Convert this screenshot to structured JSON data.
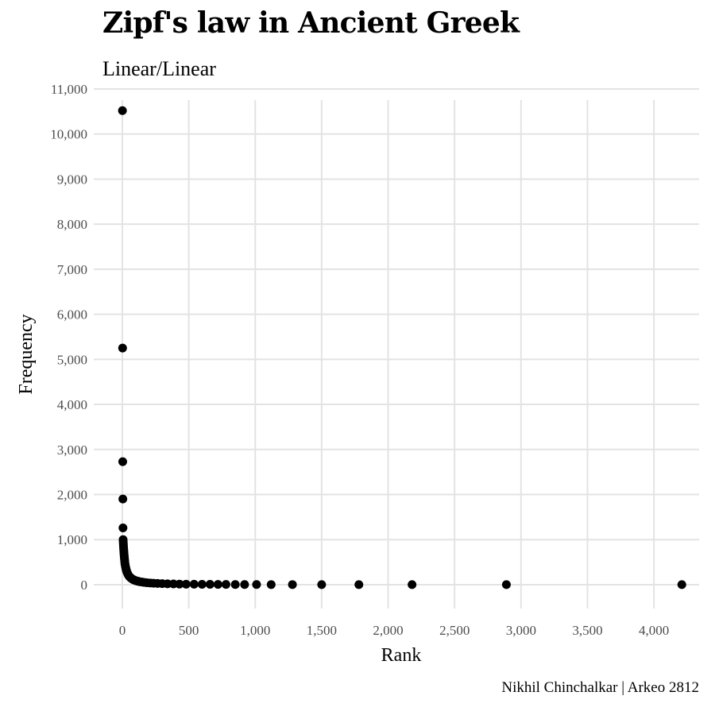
{
  "chart_data": {
    "type": "scatter",
    "title": "Zipf's law in Ancient Greek",
    "subtitle": "Linear/Linear",
    "xlabel": "Rank",
    "ylabel": "Frequency",
    "caption": "Nikhil Chinchalkar | Arkeo 2812",
    "xlim": [
      -215,
      4340
    ],
    "ylim": [
      -530,
      11000
    ],
    "x_ticks": [
      0,
      500,
      1000,
      1500,
      2000,
      2500,
      3000,
      3500,
      4000
    ],
    "x_tick_labels": [
      "0",
      "500",
      "1,000",
      "1,500",
      "2,000",
      "2,500",
      "3,000",
      "3,500",
      "4,000"
    ],
    "y_ticks": [
      0,
      1000,
      2000,
      3000,
      4000,
      5000,
      6000,
      7000,
      8000,
      9000,
      10000,
      11000
    ],
    "y_tick_labels": [
      "0",
      "1,000",
      "2,000",
      "3,000",
      "4,000",
      "5,000",
      "6,000",
      "7,000",
      "8,000",
      "9,000",
      "10,000",
      "11,000"
    ],
    "grid": true,
    "point_color": "#000000",
    "series": [
      {
        "points": [
          [
            1,
            10520
          ],
          [
            2,
            5250
          ],
          [
            3,
            2730
          ],
          [
            4,
            1900
          ],
          [
            5,
            1260
          ],
          [
            6,
            1000
          ],
          [
            7,
            950
          ],
          [
            8,
            900
          ],
          [
            9,
            850
          ],
          [
            10,
            800
          ],
          [
            11,
            760
          ],
          [
            12,
            720
          ],
          [
            13,
            680
          ],
          [
            14,
            640
          ],
          [
            15,
            610
          ],
          [
            16,
            580
          ],
          [
            17,
            550
          ],
          [
            18,
            520
          ],
          [
            19,
            490
          ],
          [
            20,
            460
          ],
          [
            22,
            430
          ],
          [
            24,
            400
          ],
          [
            26,
            370
          ],
          [
            28,
            345
          ],
          [
            30,
            320
          ],
          [
            33,
            295
          ],
          [
            36,
            270
          ],
          [
            40,
            245
          ],
          [
            44,
            220
          ],
          [
            48,
            200
          ],
          [
            53,
            180
          ],
          [
            58,
            165
          ],
          [
            64,
            150
          ],
          [
            70,
            135
          ],
          [
            77,
            120
          ],
          [
            85,
            108
          ],
          [
            95,
            96
          ],
          [
            105,
            85
          ],
          [
            118,
            75
          ],
          [
            132,
            66
          ],
          [
            148,
            58
          ],
          [
            165,
            50
          ],
          [
            185,
            43
          ],
          [
            210,
            37
          ],
          [
            235,
            32
          ],
          [
            265,
            27
          ],
          [
            300,
            23
          ],
          [
            340,
            19
          ],
          [
            385,
            16
          ],
          [
            430,
            13
          ],
          [
            480,
            11
          ],
          [
            540,
            10
          ],
          [
            600,
            8
          ],
          [
            660,
            7
          ],
          [
            720,
            6
          ],
          [
            780,
            5
          ],
          [
            850,
            4
          ],
          [
            920,
            3
          ],
          [
            1010,
            3
          ],
          [
            1120,
            2
          ],
          [
            1280,
            2
          ],
          [
            1500,
            1
          ],
          [
            1780,
            1
          ],
          [
            2180,
            1
          ],
          [
            2890,
            1
          ],
          [
            4210,
            1
          ]
        ]
      }
    ]
  }
}
